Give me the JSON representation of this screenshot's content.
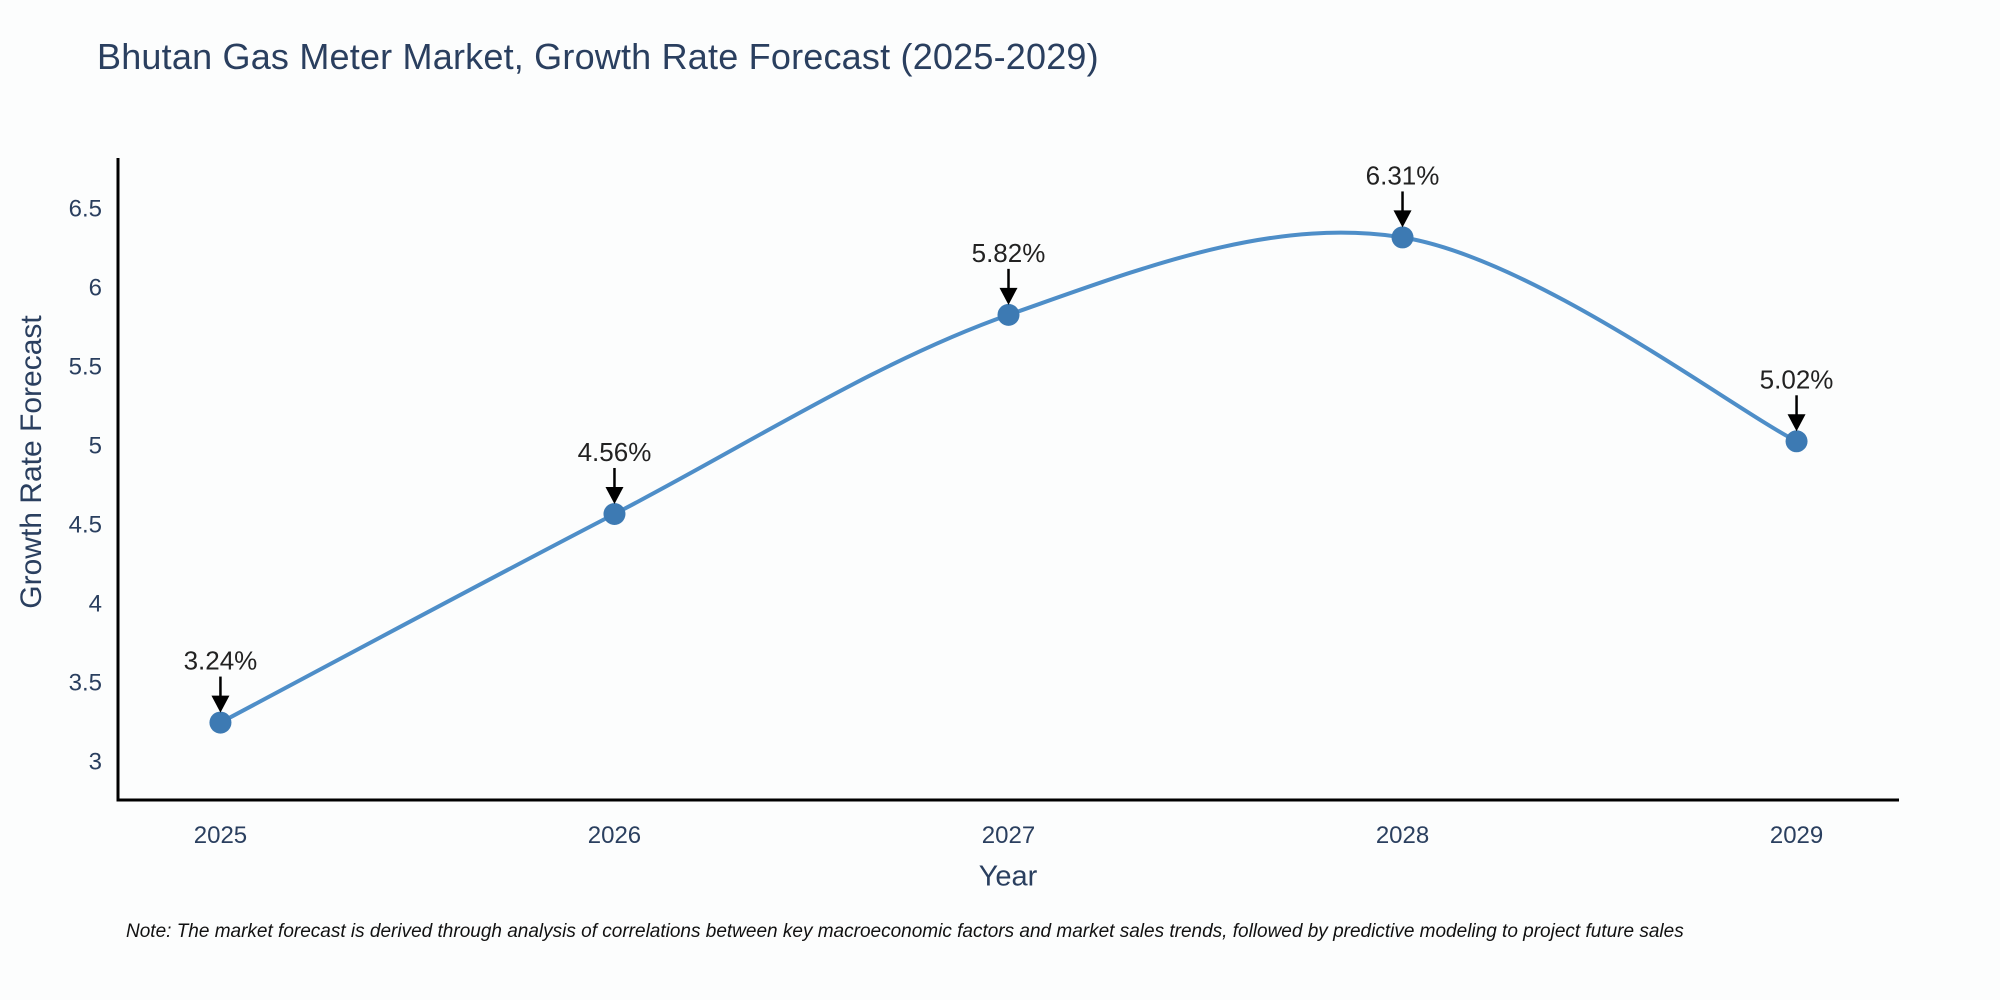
{
  "chart_data": {
    "type": "line",
    "title": "Bhutan Gas Meter Market, Growth Rate Forecast (2025-2029)",
    "xlabel": "Year",
    "ylabel": "Growth Rate Forecast",
    "x": [
      2025,
      2026,
      2027,
      2028,
      2029
    ],
    "y": [
      3.24,
      4.56,
      5.82,
      6.31,
      5.02
    ],
    "point_labels": [
      "3.24%",
      "4.56%",
      "5.82%",
      "6.31%",
      "5.02%"
    ],
    "xticks": [
      2025,
      2026,
      2027,
      2028,
      2029
    ],
    "xtick_labels": [
      "2025",
      "2026",
      "2027",
      "2028",
      "2029"
    ],
    "yticks": [
      3,
      3.5,
      4,
      4.5,
      5,
      5.5,
      6,
      6.5
    ],
    "ytick_labels": [
      "3",
      "3.5",
      "4",
      "4.5",
      "5",
      "5.5",
      "6",
      "6.5"
    ],
    "xlim": [
      2024.74,
      2029.26
    ],
    "ylim": [
      2.75,
      6.8
    ],
    "line_shape": "spline",
    "legend": "none",
    "grid": false,
    "annotations_style": "arrow-down-to-point"
  },
  "note": {
    "text": "Note: The market forecast is derived through analysis of correlations between key macroeconomic factors and market sales trends, followed by predictive modeling to project future sales"
  },
  "colors": {
    "background": "#fcfdfd",
    "title_text": "#2a3f5f",
    "tick_text": "#2a3f5f",
    "axis_title_text": "#2a3f5f",
    "annotation_text": "#222222",
    "axis_line": "#000000",
    "line": "#4e8ec8",
    "marker": "#3d7ab3",
    "note_text": "#111111"
  }
}
